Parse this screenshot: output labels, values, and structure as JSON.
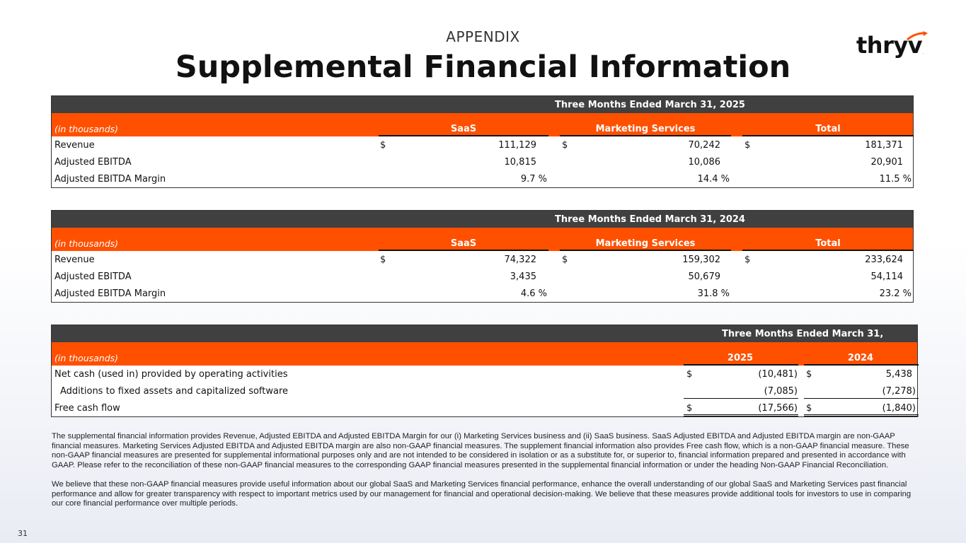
{
  "header": {
    "appendix": "APPENDIX",
    "title": "Supplemental Financial Information"
  },
  "logo": {
    "text": "thryv",
    "mark": "."
  },
  "table_2025": {
    "period": "Three Months Ended March 31, 2025",
    "unit": "(in thousands)",
    "columns": [
      "SaaS",
      "Marketing Services",
      "Total"
    ],
    "rows": [
      {
        "label": "Revenue",
        "cells": [
          {
            "cur": "$",
            "val": "111,129"
          },
          {
            "cur": "$",
            "val": "70,242"
          },
          {
            "cur": "$",
            "val": "181,371"
          }
        ]
      },
      {
        "label": "Adjusted EBITDA",
        "cells": [
          {
            "cur": "",
            "val": "10,815"
          },
          {
            "cur": "",
            "val": "10,086"
          },
          {
            "cur": "",
            "val": "20,901"
          }
        ]
      },
      {
        "label": "Adjusted EBITDA Margin",
        "cells": [
          {
            "cur": "",
            "val": "9.7 %"
          },
          {
            "cur": "",
            "val": "14.4 %"
          },
          {
            "cur": "",
            "val": "11.5 %"
          }
        ]
      }
    ]
  },
  "table_2024": {
    "period": "Three Months Ended March 31, 2024",
    "unit": "(in thousands)",
    "columns": [
      "SaaS",
      "Marketing Services",
      "Total"
    ],
    "rows": [
      {
        "label": "Revenue",
        "cells": [
          {
            "cur": "$",
            "val": "74,322"
          },
          {
            "cur": "$",
            "val": "159,302"
          },
          {
            "cur": "$",
            "val": "233,624"
          }
        ]
      },
      {
        "label": "Adjusted EBITDA",
        "cells": [
          {
            "cur": "",
            "val": "3,435"
          },
          {
            "cur": "",
            "val": "50,679"
          },
          {
            "cur": "",
            "val": "54,114"
          }
        ]
      },
      {
        "label": "Adjusted EBITDA Margin",
        "cells": [
          {
            "cur": "",
            "val": "4.6 %"
          },
          {
            "cur": "",
            "val": "31.8 %"
          },
          {
            "cur": "",
            "val": "23.2 %"
          }
        ]
      }
    ]
  },
  "table_fcf": {
    "period": "Three Months Ended March 31,",
    "unit": "(in thousands)",
    "columns": [
      "2025",
      "2024"
    ],
    "rows": [
      {
        "label": "Net cash (used in) provided by operating activities",
        "cells": [
          {
            "cur": "$",
            "val": "(10,481)"
          },
          {
            "cur": "$",
            "val": "5,438"
          }
        ]
      },
      {
        "label": "Additions to fixed assets and capitalized software",
        "cells": [
          {
            "cur": "",
            "val": "(7,085)"
          },
          {
            "cur": "",
            "val": "(7,278)"
          }
        ]
      },
      {
        "label": "Free cash flow",
        "cells": [
          {
            "cur": "$",
            "val": "(17,566)"
          },
          {
            "cur": "$",
            "val": "(1,840)"
          }
        ]
      }
    ]
  },
  "notes": [
    "The supplemental financial information provides Revenue, Adjusted EBITDA and Adjusted EBITDA Margin for our (i) Marketing Services business and (ii) SaaS business. SaaS Adjusted EBITDA and Adjusted EBITDA margin are non-GAAP financial measures. Marketing Services Adjusted EBITDA and Adjusted EBITDA margin are also non-GAAP financial measures. The supplement financial information also provides Free cash flow, which is a non-GAAP financial measure.  These non-GAAP financial measures are presented for supplemental informational purposes only and are not intended to be considered in isolation or as a substitute for, or superior to, financial information prepared and presented in accordance with GAAP. Please refer to the reconciliation of these non-GAAP financial measures to the corresponding GAAP financial measures presented in the supplemental financial information or under the heading Non-GAAP Financial Reconciliation.",
    "We believe that these non-GAAP financial measures provide useful information about our global SaaS and Marketing Services financial performance, enhance the overall understanding of our global SaaS and Marketing Services past financial performance and allow for greater transparency with respect to important metrics used by our management for financial and operational decision-making. We believe that these measures provide additional tools for investors to use in comparing our core financial performance over multiple periods."
  ],
  "page_number": "31",
  "colors": {
    "accent": "#ff5000",
    "header_bar": "#404040"
  }
}
